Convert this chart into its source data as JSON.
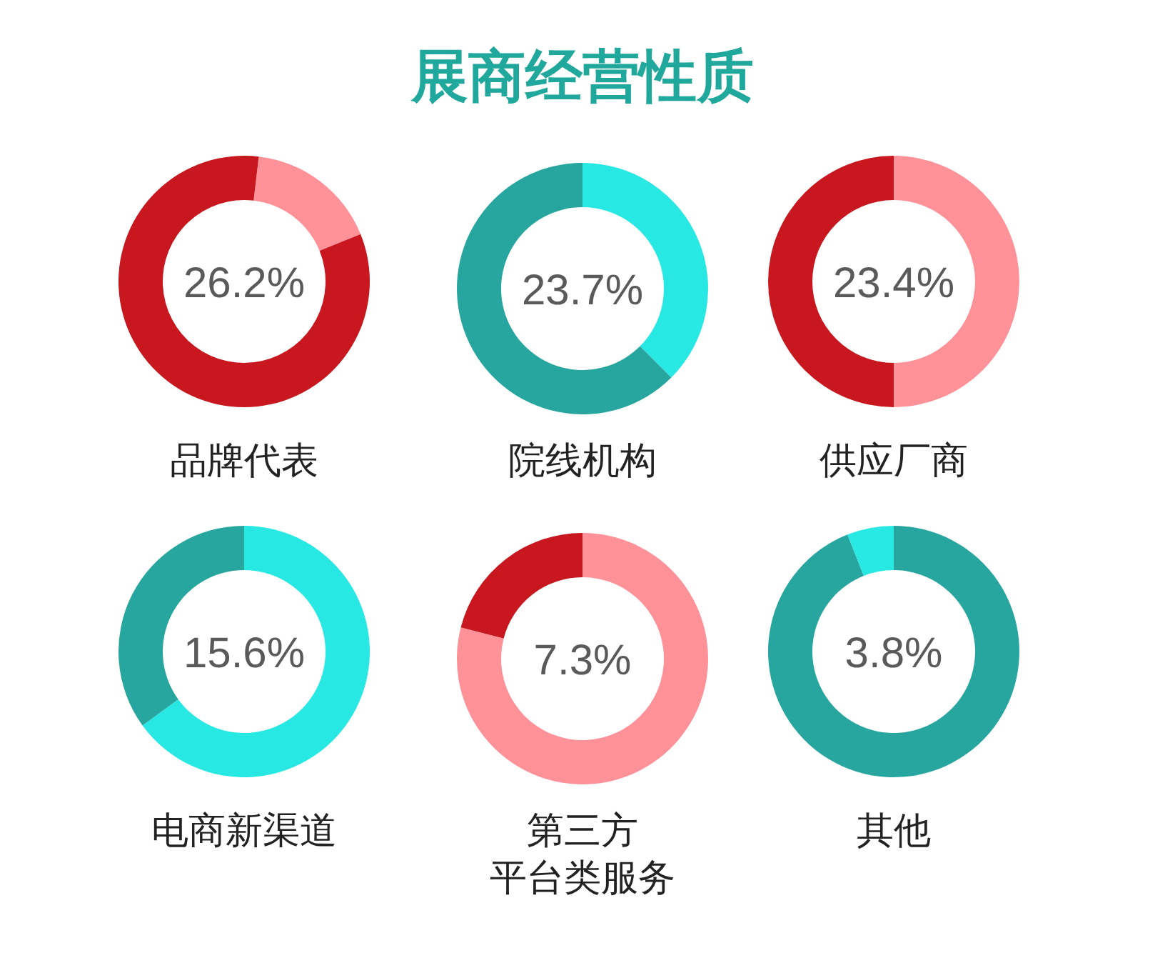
{
  "chart_data": [
    {
      "type": "donut",
      "xlabel": "品牌代表",
      "annotations": [
        "26.2%"
      ],
      "categories": [
        null,
        null
      ],
      "values": [
        17,
        83
      ],
      "colors": [
        "#ff9198",
        "#c8171e"
      ]
    },
    {
      "type": "donut",
      "title": "展商经营性质",
      "xlabel": "院线机构",
      "annotations": [
        "23.7%"
      ],
      "categories": [
        null,
        null
      ],
      "values": [
        37.5,
        62.5
      ],
      "colors": [
        "#27e8e2",
        "#26a69f"
      ]
    },
    {
      "type": "donut",
      "xlabel": "供应厂商",
      "annotations": [
        "23.4%"
      ],
      "categories": [
        null,
        null
      ],
      "values": [
        50,
        50
      ],
      "colors": [
        "#ff9198",
        "#c8171e"
      ]
    },
    {
      "type": "donut",
      "xlabel": "电商新渠道",
      "annotations": [
        "15.6%"
      ],
      "categories": [
        null,
        null
      ],
      "values": [
        65,
        35
      ],
      "colors": [
        "#27e8e2",
        "#26a69f"
      ]
    },
    {
      "type": "donut",
      "xlabel": "第三方平台类服务",
      "annotations": [
        "7.3%"
      ],
      "categories": [
        null,
        null
      ],
      "values": [
        79,
        21
      ],
      "colors": [
        "#ff9198",
        "#c8171e"
      ]
    },
    {
      "type": "donut",
      "xlabel": "其他",
      "annotations": [
        "3.8%"
      ],
      "categories": [
        null,
        null
      ],
      "values": [
        94,
        6
      ],
      "colors": [
        "#26a69f",
        "#27e8e2"
      ]
    }
  ]
}
